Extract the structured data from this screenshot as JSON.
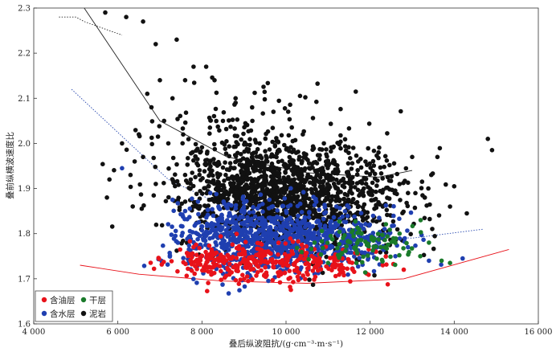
{
  "chart_data": {
    "type": "scatter",
    "title": "",
    "xlabel": "叠后纵波阻抗/(g·cm⁻³·m·s⁻¹)",
    "ylabel": "叠前纵横波速度比",
    "xlim": [
      4000,
      16000
    ],
    "ylim": [
      1.6,
      2.3
    ],
    "x_ticks": [
      "4 000",
      "6 000",
      "8 000",
      "10 000",
      "12 000",
      "14 000",
      "16 000"
    ],
    "y_ticks": [
      "1.6",
      "1.7",
      "1.8",
      "1.9",
      "2.0",
      "2.1",
      "2.2",
      "2.3"
    ],
    "legend_position": "bottom-left",
    "grid": false,
    "series": [
      {
        "name": "含油层",
        "color": "#e8121a",
        "clusters": [
          {
            "cx": 9600,
            "cy": 1.735,
            "sx": 1100,
            "sy": 0.022,
            "n": 260
          },
          {
            "cx": 8300,
            "cy": 1.745,
            "sx": 550,
            "sy": 0.016,
            "n": 60
          },
          {
            "cx": 11200,
            "cy": 1.73,
            "sx": 500,
            "sy": 0.014,
            "n": 40
          }
        ],
        "points": [
          [
            7700,
            1.755
          ],
          [
            9100,
            1.695
          ],
          [
            12300,
            1.73
          ],
          [
            12800,
            1.72
          ]
        ]
      },
      {
        "name": "含水层",
        "color": "#1f3fb0",
        "clusters": [
          {
            "cx": 9900,
            "cy": 1.79,
            "sx": 1100,
            "sy": 0.038,
            "n": 700
          },
          {
            "cx": 8600,
            "cy": 1.805,
            "sx": 500,
            "sy": 0.045,
            "n": 150
          },
          {
            "cx": 11600,
            "cy": 1.78,
            "sx": 600,
            "sy": 0.025,
            "n": 120
          }
        ],
        "points": [
          [
            7300,
            1.875
          ],
          [
            7600,
            1.85
          ],
          [
            8200,
            1.89
          ],
          [
            12600,
            1.75
          ],
          [
            13400,
            1.74
          ],
          [
            14200,
            1.745
          ],
          [
            12900,
            1.77
          ],
          [
            6100,
            1.945
          ]
        ]
      },
      {
        "name": "干层",
        "color": "#1a7a2a",
        "clusters": [
          {
            "cx": 11900,
            "cy": 1.775,
            "sx": 650,
            "sy": 0.022,
            "n": 90
          }
        ],
        "points": [
          [
            13400,
            1.78
          ],
          [
            13200,
            1.83
          ],
          [
            12700,
            1.8
          ],
          [
            13700,
            1.74
          ],
          [
            13900,
            1.735
          ],
          [
            11000,
            1.735
          ]
        ]
      },
      {
        "name": "泥岩",
        "color": "#111111",
        "clusters": [
          {
            "cx": 9900,
            "cy": 1.885,
            "sx": 1200,
            "sy": 0.055,
            "n": 1300
          },
          {
            "cx": 9000,
            "cy": 1.98,
            "sx": 1100,
            "sy": 0.07,
            "n": 200
          },
          {
            "cx": 11900,
            "cy": 1.87,
            "sx": 800,
            "sy": 0.06,
            "n": 140
          }
        ],
        "points": [
          [
            5700,
            2.29
          ],
          [
            6200,
            2.28
          ],
          [
            6600,
            2.27
          ],
          [
            6900,
            2.22
          ],
          [
            7800,
            2.17
          ],
          [
            8100,
            2.17
          ],
          [
            7600,
            2.14
          ],
          [
            7300,
            2.1
          ],
          [
            6800,
            2.08
          ],
          [
            7100,
            2.05
          ],
          [
            6500,
            2.02
          ],
          [
            6100,
            2.0
          ],
          [
            6600,
            1.97
          ],
          [
            6400,
            1.96
          ],
          [
            7200,
            2.0
          ],
          [
            8300,
            2.14
          ],
          [
            8800,
            2.09
          ],
          [
            9200,
            2.05
          ],
          [
            8500,
            2.05
          ],
          [
            9700,
            2.07
          ],
          [
            10400,
            2.02
          ],
          [
            10900,
            2.0
          ],
          [
            11600,
            1.99
          ],
          [
            12200,
            1.98
          ],
          [
            13000,
            1.97
          ],
          [
            13600,
            1.97
          ],
          [
            14000,
            1.905
          ],
          [
            14800,
            2.01
          ],
          [
            14900,
            1.985
          ],
          [
            13900,
            1.86
          ],
          [
            14300,
            1.845
          ],
          [
            12700,
            1.91
          ],
          [
            12900,
            1.89
          ],
          [
            13300,
            1.88
          ],
          [
            5800,
            1.92
          ],
          [
            6300,
            1.93
          ],
          [
            7600,
            1.93
          ],
          [
            10000,
            1.76
          ],
          [
            11200,
            1.79
          ],
          [
            9300,
            1.78
          ],
          [
            12300,
            1.86
          ],
          [
            12500,
            1.84
          ],
          [
            8800,
            2.1
          ],
          [
            7000,
            2.14
          ],
          [
            6700,
            2.11
          ],
          [
            7400,
            2.23
          ]
        ]
      }
    ],
    "template_curves": [
      {
        "color": "#222222",
        "style": "dotted",
        "ends": [
          [
            4600,
            2.28
          ],
          [
            5000,
            2.28
          ],
          [
            5200,
            2.27
          ],
          [
            5500,
            2.26
          ],
          [
            6100,
            2.24
          ]
        ]
      },
      {
        "color": "#222222",
        "style": "solid",
        "ends": [
          [
            5200,
            2.3
          ],
          [
            7000,
            2.05
          ],
          [
            8600,
            1.97
          ],
          [
            10500,
            1.935
          ],
          [
            12200,
            1.925
          ],
          [
            13000,
            1.94
          ]
        ]
      },
      {
        "color": "#2a4ab0",
        "style": "dotted",
        "ends": [
          [
            4900,
            2.12
          ],
          [
            7200,
            1.92
          ],
          [
            9000,
            1.84
          ],
          [
            11000,
            1.8
          ],
          [
            13000,
            1.79
          ],
          [
            14700,
            1.81
          ]
        ]
      },
      {
        "color": "#e8121a",
        "style": "solid",
        "ends": [
          [
            5100,
            1.73
          ],
          [
            6500,
            1.71
          ],
          [
            8500,
            1.695
          ],
          [
            10500,
            1.69
          ],
          [
            12800,
            1.7
          ],
          [
            15300,
            1.765
          ]
        ]
      }
    ]
  },
  "legend": {
    "items": [
      {
        "label": "含油层",
        "color": "#e8121a"
      },
      {
        "label": "干层",
        "color": "#1a7a2a"
      },
      {
        "label": "含水层",
        "color": "#1f3fb0"
      },
      {
        "label": "泥岩",
        "color": "#111111"
      }
    ]
  }
}
